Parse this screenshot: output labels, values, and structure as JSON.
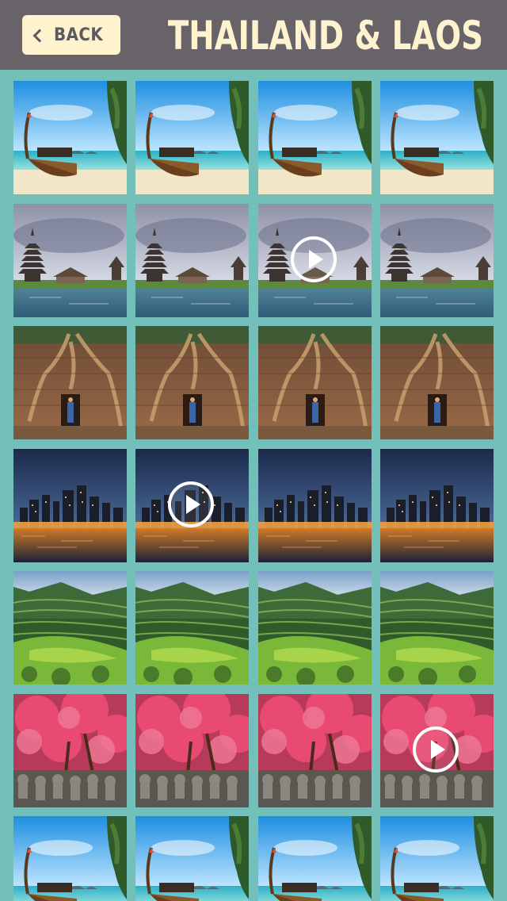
{
  "header": {
    "back_label": "BACK",
    "title": "THAILAND & LAOS"
  },
  "colors": {
    "header_bg": "#676369",
    "accent_cream": "#fef2cf",
    "grid_bg": "#73bfba"
  },
  "gallery": {
    "columns": 4,
    "rows": [
      {
        "scene": "beach-boat",
        "video_columns": []
      },
      {
        "scene": "lake-pagoda",
        "video_columns": [
          3
        ]
      },
      {
        "scene": "temple-ruins",
        "video_columns": []
      },
      {
        "scene": "city-skyline-night",
        "video_columns": [
          2
        ]
      },
      {
        "scene": "rice-terraces",
        "video_columns": []
      },
      {
        "scene": "autumn-garden",
        "video_columns": [
          4
        ]
      },
      {
        "scene": "beach-boat",
        "video_columns": []
      }
    ]
  }
}
